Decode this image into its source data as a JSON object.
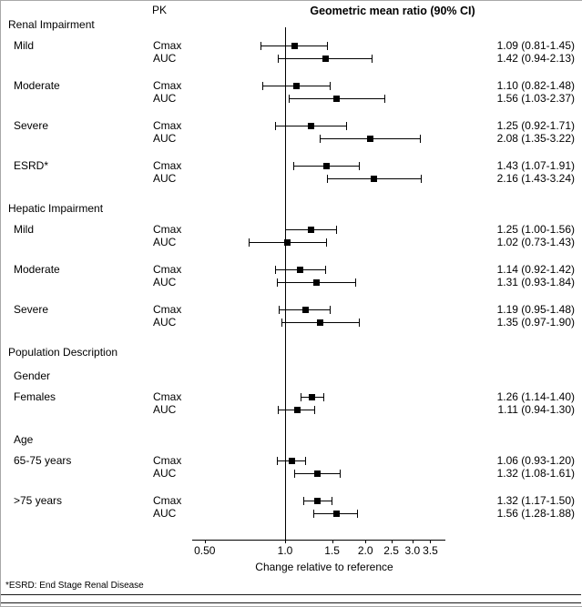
{
  "pk_header": "PK",
  "footnote": "*ESRD: End Stage Renal Disease",
  "chart_data": {
    "type": "forest",
    "title": "Geometric mean ratio (90% CI)",
    "xlabel": "Change relative to reference",
    "x_scale": "log",
    "x_ticks": [
      0.5,
      1.0,
      1.5,
      2.0,
      2.5,
      3.0,
      3.5
    ],
    "x_tick_labels": [
      "0.50",
      "1.0",
      "1.5",
      "2.0",
      "2.5",
      "3.0",
      "3.5"
    ],
    "reference_line": 1.0,
    "blocks": [
      {
        "type": "heading",
        "label": "Renal Impairment"
      },
      {
        "type": "group",
        "label": "Mild",
        "rows": [
          {
            "pk": "Cmax",
            "mean": 1.09,
            "ci_low": 0.81,
            "ci_high": 1.45,
            "text": "1.09 (0.81-1.45)"
          },
          {
            "pk": "AUC",
            "mean": 1.42,
            "ci_low": 0.94,
            "ci_high": 2.13,
            "text": "1.42 (0.94-2.13)"
          }
        ]
      },
      {
        "type": "group",
        "label": "Moderate",
        "rows": [
          {
            "pk": "Cmax",
            "mean": 1.1,
            "ci_low": 0.82,
            "ci_high": 1.48,
            "text": "1.10 (0.82-1.48)"
          },
          {
            "pk": "AUC",
            "mean": 1.56,
            "ci_low": 1.03,
            "ci_high": 2.37,
            "text": "1.56 (1.03-2.37)"
          }
        ]
      },
      {
        "type": "group",
        "label": "Severe",
        "rows": [
          {
            "pk": "Cmax",
            "mean": 1.25,
            "ci_low": 0.92,
            "ci_high": 1.71,
            "text": "1.25 (0.92-1.71)"
          },
          {
            "pk": "AUC",
            "mean": 2.08,
            "ci_low": 1.35,
            "ci_high": 3.22,
            "text": "2.08 (1.35-3.22)"
          }
        ]
      },
      {
        "type": "group",
        "label": "ESRD*",
        "rows": [
          {
            "pk": "Cmax",
            "mean": 1.43,
            "ci_low": 1.07,
            "ci_high": 1.91,
            "text": "1.43 (1.07-1.91)"
          },
          {
            "pk": "AUC",
            "mean": 2.16,
            "ci_low": 1.43,
            "ci_high": 3.24,
            "text": "2.16 (1.43-3.24)"
          }
        ]
      },
      {
        "type": "heading",
        "label": "Hepatic Impairment"
      },
      {
        "type": "group",
        "label": "Mild",
        "rows": [
          {
            "pk": "Cmax",
            "mean": 1.25,
            "ci_low": 1.0,
            "ci_high": 1.56,
            "text": "1.25 (1.00-1.56)"
          },
          {
            "pk": "AUC",
            "mean": 1.02,
            "ci_low": 0.73,
            "ci_high": 1.43,
            "text": "1.02 (0.73-1.43)"
          }
        ]
      },
      {
        "type": "group",
        "label": "Moderate",
        "rows": [
          {
            "pk": "Cmax",
            "mean": 1.14,
            "ci_low": 0.92,
            "ci_high": 1.42,
            "text": "1.14 (0.92-1.42)"
          },
          {
            "pk": "AUC",
            "mean": 1.31,
            "ci_low": 0.93,
            "ci_high": 1.84,
            "text": "1.31 (0.93-1.84)"
          }
        ]
      },
      {
        "type": "group",
        "label": "Severe",
        "rows": [
          {
            "pk": "Cmax",
            "mean": 1.19,
            "ci_low": 0.95,
            "ci_high": 1.48,
            "text": "1.19 (0.95-1.48)"
          },
          {
            "pk": "AUC",
            "mean": 1.35,
            "ci_low": 0.97,
            "ci_high": 1.9,
            "text": "1.35 (0.97-1.90)"
          }
        ]
      },
      {
        "type": "heading",
        "label": "Population Description"
      },
      {
        "type": "subheading",
        "label": "Gender"
      },
      {
        "type": "group",
        "label": "Females",
        "rows": [
          {
            "pk": "Cmax",
            "mean": 1.26,
            "ci_low": 1.14,
            "ci_high": 1.4,
            "text": "1.26 (1.14-1.40)"
          },
          {
            "pk": "AUC",
            "mean": 1.11,
            "ci_low": 0.94,
            "ci_high": 1.3,
            "text": "1.11 (0.94-1.30)"
          }
        ]
      },
      {
        "type": "subheading",
        "label": "Age"
      },
      {
        "type": "group",
        "label": "65-75 years",
        "rows": [
          {
            "pk": "Cmax",
            "mean": 1.06,
            "ci_low": 0.93,
            "ci_high": 1.2,
            "text": "1.06 (0.93-1.20)"
          },
          {
            "pk": "AUC",
            "mean": 1.32,
            "ci_low": 1.08,
            "ci_high": 1.61,
            "text": "1.32 (1.08-1.61)"
          }
        ]
      },
      {
        "type": "group",
        "label": ">75 years",
        "rows": [
          {
            "pk": "Cmax",
            "mean": 1.32,
            "ci_low": 1.17,
            "ci_high": 1.5,
            "text": "1.32 (1.17-1.50)"
          },
          {
            "pk": "AUC",
            "mean": 1.56,
            "ci_low": 1.28,
            "ci_high": 1.88,
            "text": "1.56 (1.28-1.88)"
          }
        ]
      }
    ]
  }
}
